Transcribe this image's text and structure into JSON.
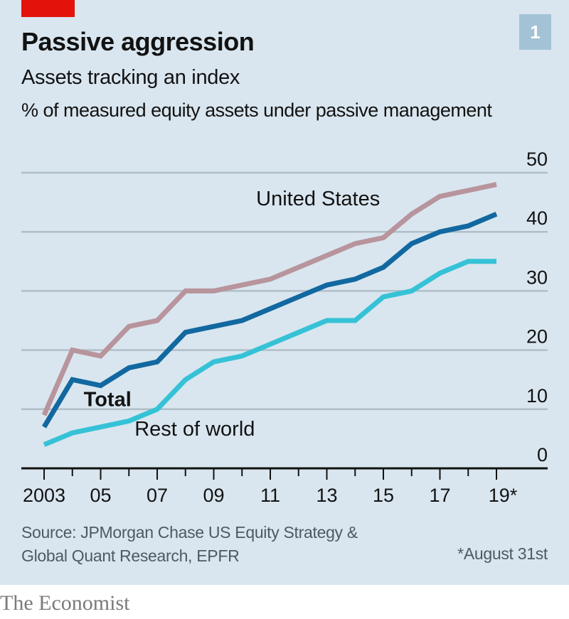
{
  "header": {
    "title": "Passive aggression",
    "subtitle": "Assets tracking an index",
    "unit_label": "% of measured equity assets under passive management",
    "chart_number": "1"
  },
  "footer": {
    "source_line1": "Source: JPMorgan Chase US Equity Strategy &",
    "source_line2": "Global Quant Research, EPFR",
    "note": "*August 31st",
    "brand": "The Economist"
  },
  "colors": {
    "background": "#d9e6ef",
    "accent_red": "#e3120b",
    "united_states": "#b8949c",
    "total": "#1268a0",
    "rest_of_world": "#36c2d6"
  },
  "chart_data": {
    "type": "line",
    "title": "Passive aggression",
    "subtitle": "Assets tracking an index",
    "ylabel": "% of measured equity assets under passive management",
    "xlabel": "",
    "x": [
      2003,
      2004,
      2005,
      2006,
      2007,
      2008,
      2009,
      2010,
      2011,
      2012,
      2013,
      2014,
      2015,
      2016,
      2017,
      2018,
      2019
    ],
    "xlim": [
      2003,
      2019
    ],
    "ylim": [
      0,
      50
    ],
    "y_ticks": [
      0,
      10,
      20,
      30,
      40,
      50
    ],
    "y_tick_labels": [
      "0",
      "10",
      "20",
      "30",
      "40",
      "50"
    ],
    "x_tick_labels": [
      {
        "year": 2003,
        "label": "2003"
      },
      {
        "year": 2005,
        "label": "05"
      },
      {
        "year": 2007,
        "label": "07"
      },
      {
        "year": 2009,
        "label": "09"
      },
      {
        "year": 2011,
        "label": "11"
      },
      {
        "year": 2013,
        "label": "13"
      },
      {
        "year": 2015,
        "label": "15"
      },
      {
        "year": 2017,
        "label": "17"
      },
      {
        "year": 2019,
        "label": "19*"
      }
    ],
    "grid": true,
    "y_axis_position": "right",
    "series": [
      {
        "name": "United States",
        "color": "#b8949c",
        "label_bold": false,
        "label_at": [
          2010.5,
          44.5
        ],
        "values": [
          9,
          20,
          19,
          24,
          25,
          30,
          30,
          31,
          32,
          34,
          36,
          38,
          39,
          43,
          46,
          47,
          48
        ]
      },
      {
        "name": "Total",
        "color": "#1268a0",
        "label_bold": true,
        "label_at": [
          2004.4,
          10.5
        ],
        "values": [
          7,
          15,
          14,
          17,
          18,
          23,
          24,
          25,
          27,
          29,
          31,
          32,
          34,
          38,
          40,
          41,
          43
        ]
      },
      {
        "name": "Rest of world",
        "color": "#36c2d6",
        "label_bold": false,
        "label_at": [
          2006.2,
          5.5
        ],
        "values": [
          4,
          6,
          7,
          8,
          10,
          15,
          18,
          19,
          21,
          23,
          25,
          25,
          29,
          30,
          33,
          35,
          35
        ]
      }
    ]
  }
}
